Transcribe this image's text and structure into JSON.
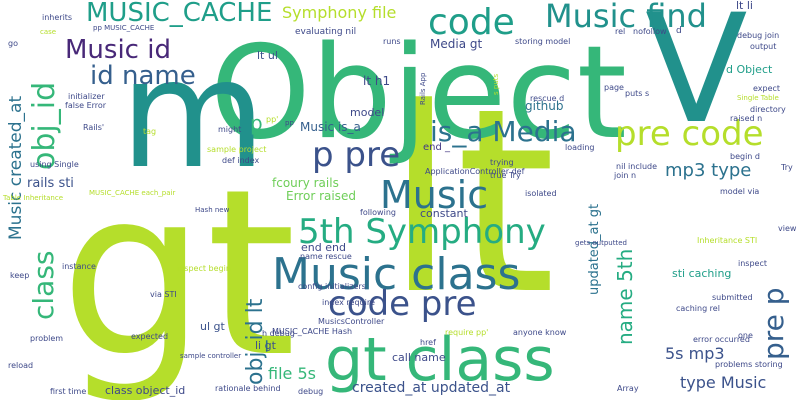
{
  "words": [
    {
      "text": "gt",
      "color": "#b5de2b"
    },
    {
      "text": "lt",
      "color": "#b5de2b"
    },
    {
      "text": "Object",
      "color": "#35b779"
    },
    {
      "text": "m",
      "color": "#21918c"
    },
    {
      "text": "V",
      "color": "#21918c"
    },
    {
      "text": "gt class",
      "color": "#35b779"
    },
    {
      "text": "Music class",
      "color": "#2c728e"
    },
    {
      "text": "5th Symphony",
      "color": "#25ac82"
    },
    {
      "text": "code pre",
      "color": "#3b528b"
    },
    {
      "text": "Music",
      "color": "#2c728e"
    },
    {
      "text": "p pre",
      "color": "#3b528b"
    },
    {
      "text": "pre code",
      "color": "#b5de2b"
    },
    {
      "text": "is_a Media",
      "color": "#2c728e"
    },
    {
      "text": "code",
      "color": "#1f9e89"
    },
    {
      "text": "Music find",
      "color": "#21918c"
    },
    {
      "text": "MUSIC_CACHE",
      "color": "#1f9e89"
    },
    {
      "text": "Music id",
      "color": "#482878"
    },
    {
      "text": "id name",
      "color": "#355f8d"
    },
    {
      "text": "obj_id",
      "color": "#35b779"
    },
    {
      "text": "class",
      "color": "#35b779"
    },
    {
      "text": "obj_id lt",
      "color": "#2c728e"
    },
    {
      "text": "pre p",
      "color": "#355f8d"
    },
    {
      "text": "name 5th",
      "color": "#25ac82"
    },
    {
      "text": "Symphony file",
      "color": "#b5de2b"
    },
    {
      "text": "Music created_at",
      "color": "#2c728e"
    },
    {
      "text": "mp3 type",
      "color": "#2c728e"
    },
    {
      "text": "type Music",
      "color": "#3b528b"
    },
    {
      "text": "5s mp3",
      "color": "#3b528b"
    },
    {
      "text": "file 5s",
      "color": "#35b779"
    },
    {
      "text": "created_at updated_at",
      "color": "#3b528b"
    },
    {
      "text": "updated_at gt",
      "color": "#2c728e"
    },
    {
      "text": "Music is_a",
      "color": "#355f8d"
    },
    {
      "text": "p",
      "color": "#35b779"
    },
    {
      "text": "rails sti",
      "color": "#3b528b"
    },
    {
      "text": "fcoury rails",
      "color": "#6ece58"
    },
    {
      "text": "Error raised",
      "color": "#6ece58"
    },
    {
      "text": "github",
      "color": "#2c728e"
    },
    {
      "text": "Media gt",
      "color": "#3e4989"
    },
    {
      "text": "lt h1",
      "color": "#3e4989"
    },
    {
      "text": "lt ul",
      "color": "#3b528b"
    },
    {
      "text": "lt li",
      "color": "#3e4989"
    },
    {
      "text": "d Object",
      "color": "#1f9e89"
    },
    {
      "text": "ul gt",
      "color": "#3b528b"
    },
    {
      "text": "li gt",
      "color": "#3b528b"
    },
    {
      "text": "end end",
      "color": "#3e4989"
    },
    {
      "text": "name rescue",
      "color": "#3e4989"
    },
    {
      "text": "call name",
      "color": "#3e4989"
    },
    {
      "text": "sti caching",
      "color": "#1f9e89"
    },
    {
      "text": "constant",
      "color": "#3e4989"
    },
    {
      "text": "model",
      "color": "#3e4989"
    },
    {
      "text": "end _",
      "color": "#443983"
    },
    {
      "text": "class object_id",
      "color": "#3e4989"
    },
    {
      "text": "ApplicationController def",
      "color": "#3e4989"
    },
    {
      "text": "evaluating nil",
      "color": "#3e4989"
    },
    {
      "text": "nofollow",
      "color": "#3e4989"
    },
    {
      "text": "rel",
      "color": "#3e4989"
    },
    {
      "text": "storing model",
      "color": "#3e4989"
    },
    {
      "text": "debug join",
      "color": "#3e4989"
    },
    {
      "text": "output",
      "color": "#3e4989"
    },
    {
      "text": "inherits",
      "color": "#3e4989"
    },
    {
      "text": "pp MUSIC_CACHE",
      "color": "#3e4989"
    },
    {
      "text": "case",
      "color": "#b5de2b"
    },
    {
      "text": "initializer",
      "color": "#3e4989"
    },
    {
      "text": "false Error",
      "color": "#3e4989"
    },
    {
      "text": "Rails'",
      "color": "#3e4989"
    },
    {
      "text": "tag",
      "color": "#b5de2b"
    },
    {
      "text": "might",
      "color": "#3e4989"
    },
    {
      "text": "sample project",
      "color": "#b5de2b"
    },
    {
      "text": "def index",
      "color": "#3e4989"
    },
    {
      "text": "using Single",
      "color": "#3e4989"
    },
    {
      "text": "MUSIC_CACHE each_pair",
      "color": "#b5de2b"
    },
    {
      "text": "Table Inheritance",
      "color": "#b5de2b"
    },
    {
      "text": "inspect begin",
      "color": "#b5de2b"
    },
    {
      "text": "Hash new",
      "color": "#3e4989"
    },
    {
      "text": "instance",
      "color": "#3e4989"
    },
    {
      "text": "keep",
      "color": "#3e4989"
    },
    {
      "text": "via STI",
      "color": "#3e4989"
    },
    {
      "text": "config initializers",
      "color": "#3e4989"
    },
    {
      "text": "MusicsController",
      "color": "#3e4989"
    },
    {
      "text": "h debug",
      "color": "#3e4989"
    },
    {
      "text": "MUSIC_CACHE Hash",
      "color": "#3e4989"
    },
    {
      "text": "sample controller",
      "color": "#3e4989"
    },
    {
      "text": "problem",
      "color": "#3e4989"
    },
    {
      "text": "expected",
      "color": "#3e4989"
    },
    {
      "text": "reload",
      "color": "#3e4989"
    },
    {
      "text": "first time",
      "color": "#3e4989"
    },
    {
      "text": "rationale behind",
      "color": "#3e4989"
    },
    {
      "text": "debug",
      "color": "#3e4989"
    },
    {
      "text": "index require",
      "color": "#3e4989"
    },
    {
      "text": "require pp'",
      "color": "#b5de2b"
    },
    {
      "text": "href",
      "color": "#3e4989"
    },
    {
      "text": "anyone know",
      "color": "#3e4989"
    },
    {
      "text": "true Try",
      "color": "#3e4989"
    },
    {
      "text": "join n",
      "color": "#3e4989"
    },
    {
      "text": "isolated",
      "color": "#3e4989"
    },
    {
      "text": "following",
      "color": "#3e4989"
    },
    {
      "text": "gets outputted",
      "color": "#3e4989"
    },
    {
      "text": "trying",
      "color": "#3e4989"
    },
    {
      "text": "nil include",
      "color": "#3e4989"
    },
    {
      "text": "begin d",
      "color": "#3e4989"
    },
    {
      "text": "model via",
      "color": "#3e4989"
    },
    {
      "text": "Try",
      "color": "#3e4989"
    },
    {
      "text": "view",
      "color": "#3e4989"
    },
    {
      "text": "Inheritance STI",
      "color": "#b5de2b"
    },
    {
      "text": "inspect",
      "color": "#3e4989"
    },
    {
      "text": "submitted",
      "color": "#3e4989"
    },
    {
      "text": "caching rel",
      "color": "#3e4989"
    },
    {
      "text": "error occurred",
      "color": "#3e4989"
    },
    {
      "text": "one",
      "color": "#3e4989"
    },
    {
      "text": "problems storing",
      "color": "#3e4989"
    },
    {
      "text": "Array",
      "color": "#3e4989"
    },
    {
      "text": "loading",
      "color": "#3e4989"
    },
    {
      "text": "rescue d",
      "color": "#3e4989"
    },
    {
      "text": "page",
      "color": "#3e4989"
    },
    {
      "text": "puts s",
      "color": "#3e4989"
    },
    {
      "text": "expect",
      "color": "#3e4989"
    },
    {
      "text": "Single Table",
      "color": "#b5de2b"
    },
    {
      "text": "directory",
      "color": "#3e4989"
    },
    {
      "text": "raised n",
      "color": "#3e4989"
    },
    {
      "text": "runs",
      "color": "#3e4989"
    },
    {
      "text": "Rails App",
      "color": "#3e4989"
    },
    {
      "text": "s puts",
      "color": "#b5de2b"
    },
    {
      "text": "d",
      "color": "#3e4989"
    },
    {
      "text": "go",
      "color": "#3e4989"
    },
    {
      "text": "pp'",
      "color": "#b5de2b"
    },
    {
      "text": "pp",
      "color": "#3e4989"
    }
  ]
}
